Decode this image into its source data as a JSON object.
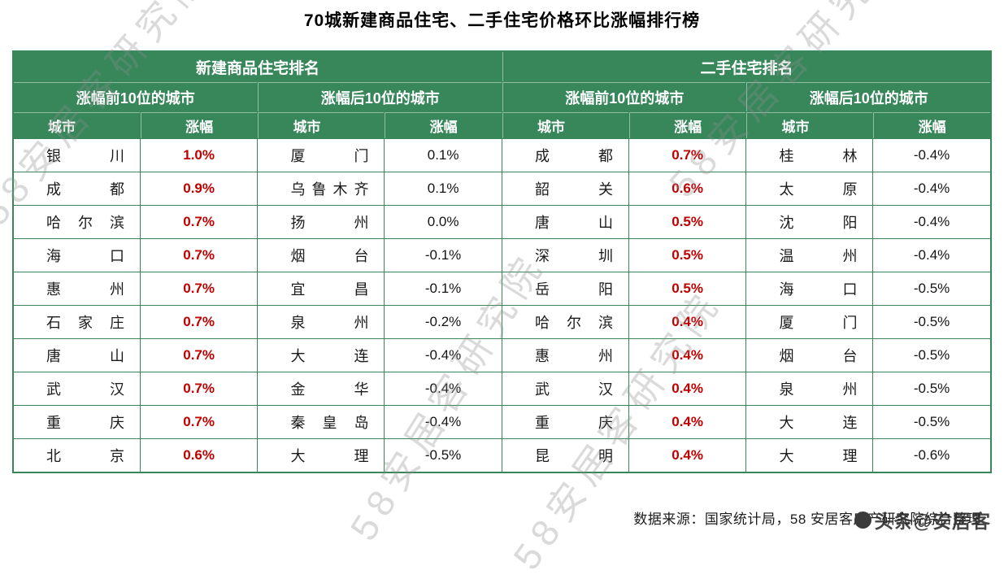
{
  "page": {
    "title": "70城新建商品住宅、二手住宅价格环比涨幅排行榜",
    "source": "数据来源：国家统计局，58 安居客房产研究院综合整理",
    "badge": "头条@安居客",
    "watermark": "58安居客研究院"
  },
  "colors": {
    "header_green": "#37875B",
    "rise_red": "#C00000"
  },
  "chart_data": {
    "type": "table",
    "title": "70城新建商品住宅、二手住宅价格环比涨幅排行榜",
    "sections": [
      {
        "title": "新建商品住宅排名",
        "groups": [
          {
            "title": "涨幅前10位的城市",
            "city_header": "城市",
            "change_header": "涨幅",
            "value_style": "red-bold",
            "rows": [
              {
                "city": "银川",
                "change": "1.0%"
              },
              {
                "city": "成都",
                "change": "0.9%"
              },
              {
                "city": "哈尔滨",
                "change": "0.7%"
              },
              {
                "city": "海口",
                "change": "0.7%"
              },
              {
                "city": "惠州",
                "change": "0.7%"
              },
              {
                "city": "石家庄",
                "change": "0.7%"
              },
              {
                "city": "唐山",
                "change": "0.7%"
              },
              {
                "city": "武汉",
                "change": "0.7%"
              },
              {
                "city": "重庆",
                "change": "0.7%"
              },
              {
                "city": "北京",
                "change": "0.6%"
              }
            ]
          },
          {
            "title": "涨幅后10位的城市",
            "city_header": "城市",
            "change_header": "涨幅",
            "value_style": "plain",
            "rows": [
              {
                "city": "厦门",
                "change": "0.1%"
              },
              {
                "city": "乌鲁木齐",
                "change": "0.1%"
              },
              {
                "city": "扬州",
                "change": "0.0%"
              },
              {
                "city": "烟台",
                "change": "-0.1%"
              },
              {
                "city": "宜昌",
                "change": "-0.1%"
              },
              {
                "city": "泉州",
                "change": "-0.2%"
              },
              {
                "city": "大连",
                "change": "-0.4%"
              },
              {
                "city": "金华",
                "change": "-0.4%"
              },
              {
                "city": "秦皇岛",
                "change": "-0.4%"
              },
              {
                "city": "大理",
                "change": "-0.5%"
              }
            ]
          }
        ]
      },
      {
        "title": "二手住宅排名",
        "groups": [
          {
            "title": "涨幅前10位的城市",
            "city_header": "城市",
            "change_header": "涨幅",
            "value_style": "red-bold",
            "rows": [
              {
                "city": "成都",
                "change": "0.7%"
              },
              {
                "city": "韶关",
                "change": "0.6%"
              },
              {
                "city": "唐山",
                "change": "0.5%"
              },
              {
                "city": "深圳",
                "change": "0.5%"
              },
              {
                "city": "岳阳",
                "change": "0.5%"
              },
              {
                "city": "哈尔滨",
                "change": "0.4%"
              },
              {
                "city": "惠州",
                "change": "0.4%"
              },
              {
                "city": "武汉",
                "change": "0.4%"
              },
              {
                "city": "重庆",
                "change": "0.4%"
              },
              {
                "city": "昆明",
                "change": "0.4%"
              }
            ]
          },
          {
            "title": "涨幅后10位的城市",
            "city_header": "城市",
            "change_header": "涨幅",
            "value_style": "plain",
            "rows": [
              {
                "city": "桂林",
                "change": "-0.4%"
              },
              {
                "city": "太原",
                "change": "-0.4%"
              },
              {
                "city": "沈阳",
                "change": "-0.4%"
              },
              {
                "city": "温州",
                "change": "-0.4%"
              },
              {
                "city": "海口",
                "change": "-0.5%"
              },
              {
                "city": "厦门",
                "change": "-0.5%"
              },
              {
                "city": "烟台",
                "change": "-0.5%"
              },
              {
                "city": "泉州",
                "change": "-0.5%"
              },
              {
                "city": "大连",
                "change": "-0.5%"
              },
              {
                "city": "大理",
                "change": "-0.6%"
              }
            ]
          }
        ]
      }
    ]
  }
}
